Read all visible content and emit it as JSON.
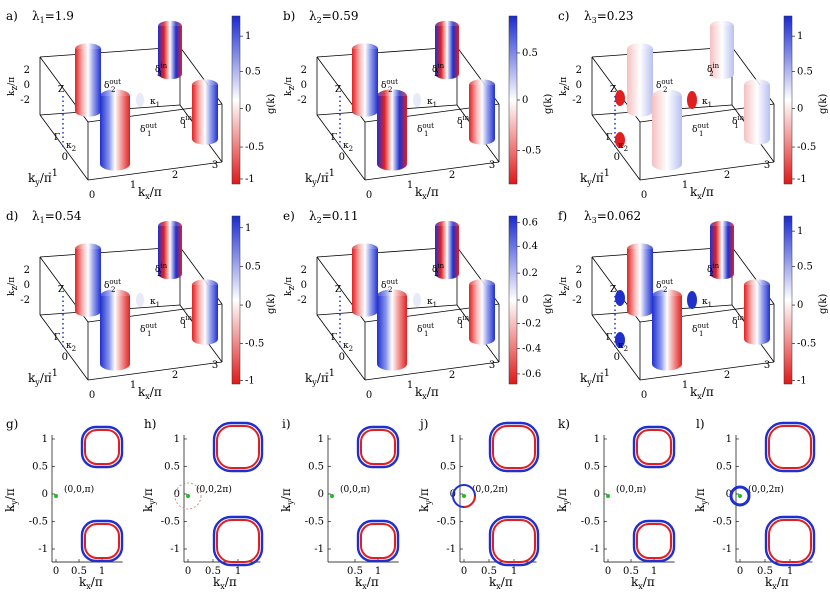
{
  "chart_data": [
    {
      "type": "3d-surface",
      "panel": "a)",
      "lambda": "λ1=1.9",
      "xlabel": "kx/π",
      "ylabel": "ky/π",
      "zlabel": "kz/π",
      "colorbar_label": "g(k)",
      "colorbar_ticks": [
        "1",
        "0.5",
        "0",
        "-0.5",
        "-1"
      ],
      "xticks": [
        "0",
        "1",
        "2",
        "3"
      ],
      "yticks": [
        "0",
        "-1"
      ],
      "zticks": [
        "2",
        "0",
        "-2"
      ],
      "surface_labels": [
        "Z",
        "Γ",
        "κ1",
        "κ2",
        "δ2out",
        "δ3in",
        "δ1out",
        "δ1in"
      ]
    },
    {
      "type": "3d-surface",
      "panel": "b)",
      "lambda": "λ2=0.59",
      "xlabel": "kx/π",
      "ylabel": "ky/π",
      "zlabel": "kz/π",
      "colorbar_label": "g(k)",
      "colorbar_ticks": [
        "0.5",
        "0",
        "-0.5"
      ],
      "xticks": [
        "0",
        "1",
        "2",
        "3"
      ],
      "yticks": [
        "0",
        "-1"
      ],
      "zticks": [
        "2",
        "0",
        "-2"
      ],
      "surface_labels": [
        "Z",
        "Γ",
        "κ1",
        "κ2",
        "δ2out",
        "δ2in",
        "δ1out",
        "δ1in"
      ]
    },
    {
      "type": "3d-surface",
      "panel": "c)",
      "lambda": "λ3=0.23",
      "xlabel": "kx/π",
      "ylabel": "ky/π",
      "zlabel": "kz/π",
      "colorbar_label": "g(k)",
      "colorbar_ticks": [
        "1",
        "0.5",
        "0",
        "-0.5",
        "-1"
      ],
      "xticks": [
        "0",
        "1",
        "2",
        "3"
      ],
      "yticks": [
        "0",
        "-1"
      ],
      "zticks": [
        "2",
        "0",
        "-2"
      ],
      "surface_labels": [
        "Z",
        "Γ",
        "κ1",
        "κ2",
        "δ2out",
        "δ2in",
        "δ1out",
        "δ1in"
      ]
    },
    {
      "type": "3d-surface",
      "panel": "d)",
      "lambda": "λ1=0.54",
      "xlabel": "kx/π",
      "ylabel": "ky/π",
      "zlabel": "kz/π",
      "colorbar_label": "g(k)",
      "colorbar_ticks": [
        "1",
        "0.5",
        "0",
        "-0.5",
        "-1"
      ],
      "xticks": [
        "0",
        "1",
        "2",
        "3"
      ],
      "yticks": [
        "0",
        "-1"
      ],
      "zticks": [
        "2",
        "0",
        "-2"
      ],
      "surface_labels": [
        "Z",
        "Γ",
        "κ1",
        "κ2",
        "δ2out",
        "δ2in",
        "δ1out",
        "δ1in"
      ]
    },
    {
      "type": "3d-surface",
      "panel": "e)",
      "lambda": "λ2=0.11",
      "xlabel": "kx/π",
      "ylabel": "ky/π",
      "zlabel": "kz/π",
      "colorbar_label": "g(k)",
      "colorbar_ticks": [
        "0.6",
        "0.4",
        "0.2",
        "0",
        "-0.2",
        "-0.4",
        "-0.6"
      ],
      "xticks": [
        "0",
        "1",
        "2",
        "3"
      ],
      "yticks": [
        "0",
        "-1"
      ],
      "zticks": [
        "2",
        "0",
        "-2"
      ],
      "surface_labels": [
        "Z",
        "Γ",
        "κ1",
        "κ2",
        "δ2out",
        "δ2in",
        "δ1out",
        "δ1in"
      ]
    },
    {
      "type": "3d-surface",
      "panel": "f)",
      "lambda": "λ3=0.062",
      "xlabel": "kx/π",
      "ylabel": "ky/π",
      "zlabel": "kz/π",
      "colorbar_label": "g(k)",
      "colorbar_ticks": [
        "1",
        "0.5",
        "0",
        "-0.5",
        "-1"
      ],
      "xticks": [
        "0",
        "1",
        "2",
        "3"
      ],
      "yticks": [
        "0",
        "-1"
      ],
      "zticks": [
        "2",
        "0",
        "-2"
      ],
      "surface_labels": [
        "Z",
        "Γ",
        "κ1",
        "κ2",
        "δ2out",
        "δ2in",
        "δ1out",
        "δ1in"
      ]
    },
    {
      "type": "scatter",
      "panel": "g)",
      "xlabel": "kx/π",
      "ylabel": "ky/π",
      "xticks": [
        "0",
        "0.5",
        "1"
      ],
      "yticks": [
        "1",
        "0.5",
        "0",
        "-0.5",
        "-1"
      ],
      "annotation": "(0,0,π)",
      "has_central_pocket": false
    },
    {
      "type": "scatter",
      "panel": "h)",
      "xlabel": "kx/π",
      "ylabel": "ky/π",
      "xticks": [
        "0",
        "0.5",
        "1"
      ],
      "yticks": [
        "1",
        "0.5",
        "0",
        "-0.5",
        "-1"
      ],
      "annotation": "(0,0,2π)",
      "has_central_pocket": true,
      "pocket_style": "dashed"
    },
    {
      "type": "scatter",
      "panel": "i)",
      "xlabel": "kx/π",
      "ylabel": "ky/π",
      "xticks": [
        "0.5",
        "1"
      ],
      "yticks": [
        "1",
        "0.5",
        "0",
        "-0.5",
        "-1"
      ],
      "annotation": "(0,0,π)",
      "has_central_pocket": false
    },
    {
      "type": "scatter",
      "panel": "j)",
      "xlabel": "kx/π",
      "ylabel": "ky/π",
      "xticks": [
        "0",
        "0.5",
        "1"
      ],
      "yticks": [
        "1",
        "0.5",
        "0",
        "-0.5",
        "-1"
      ],
      "annotation": "(0,0,2π)",
      "has_central_pocket": true,
      "pocket_style": "mixed"
    },
    {
      "type": "scatter",
      "panel": "k)",
      "xlabel": "kx/π",
      "ylabel": "ky/π",
      "xticks": [
        "0",
        "0.5",
        "1"
      ],
      "yticks": [
        "1",
        "0.5",
        "0",
        "-0.5",
        "-1"
      ],
      "annotation": "(0,0,π)",
      "has_central_pocket": false
    },
    {
      "type": "scatter",
      "panel": "l)",
      "xlabel": "kx/π",
      "ylabel": "ky/π",
      "xticks": [
        "0",
        "0.5",
        "1"
      ],
      "yticks": [
        "1",
        "0.5",
        "0",
        "-0.5",
        "-1"
      ],
      "annotation": "(0,0,2π)",
      "has_central_pocket": true,
      "pocket_style": "blue"
    }
  ],
  "colors": {
    "positive": "#1f2fd0",
    "negative": "#e02020",
    "neutral": "#ffffff",
    "green": "#22bb22"
  }
}
